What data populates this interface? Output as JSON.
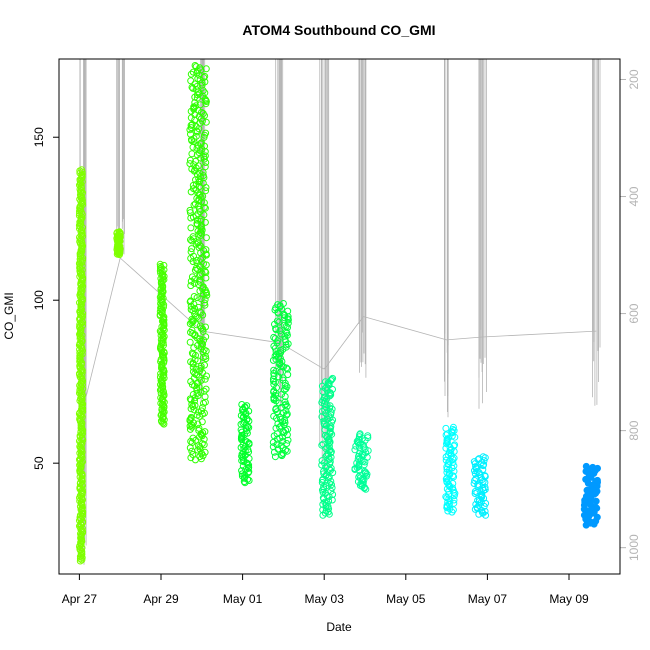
{
  "chart_data": {
    "type": "scatter",
    "title": "ATOM4 Southbound CO_GMI",
    "xlabel": "Date",
    "ylabel": "CO_GMI",
    "ylim": [
      16,
      174
    ],
    "y_ticks": [
      50,
      100,
      150
    ],
    "x_ticks": [
      {
        "date": "2018-04-27",
        "label": "Apr 27"
      },
      {
        "date": "2018-04-29",
        "label": "Apr 29"
      },
      {
        "date": "2018-05-01",
        "label": "May 01"
      },
      {
        "date": "2018-05-03",
        "label": "May 03"
      },
      {
        "date": "2018-05-05",
        "label": "May 05"
      },
      {
        "date": "2018-05-07",
        "label": "May 07"
      },
      {
        "date": "2018-05-09",
        "label": "May 09"
      }
    ],
    "xlim": [
      "2018-04-26T12:00",
      "2018-05-10T06:00"
    ],
    "secondary_axis": {
      "side": "right",
      "reversed": true,
      "color": "#b4b4b4",
      "ylim": [
        1045,
        165
      ],
      "ticks": [
        200,
        400,
        600,
        800,
        1000
      ]
    },
    "series": [
      {
        "time": "2018-04-27T00:00",
        "time_end": "2018-04-27T02:00",
        "y_min": 20,
        "y_max": 140,
        "color": "#7fff00",
        "hollow": true
      },
      {
        "time": "2018-04-27T22:00",
        "time_end": "2018-04-28T00:00",
        "y_min": 114,
        "y_max": 121,
        "color": "#7fff00",
        "hollow": true
      },
      {
        "time": "2018-04-28T23:30",
        "time_end": "2018-04-29T02:00",
        "y_min": 62,
        "y_max": 111,
        "color": "#47ff00",
        "hollow": true
      },
      {
        "time": "2018-04-29T17:00",
        "time_end": "2018-04-30T03:00",
        "y_min": 51,
        "y_max": 172,
        "color": "#2eff00",
        "hollow": true
      },
      {
        "time": "2018-04-30T23:00",
        "time_end": "2018-05-01T04:00",
        "y_min": 44,
        "y_max": 68,
        "color": "#00ff2a",
        "hollow": true
      },
      {
        "time": "2018-05-01T18:00",
        "time_end": "2018-05-02T03:00",
        "y_min": 52,
        "y_max": 99,
        "color": "#00ff3c",
        "hollow": true
      },
      {
        "time": "2018-05-02T22:30",
        "time_end": "2018-05-03T05:00",
        "y_min": 34,
        "y_max": 76,
        "color": "#00ff8a",
        "hollow": true
      },
      {
        "time": "2018-05-03T18:00",
        "time_end": "2018-05-04T02:00",
        "y_min": 42,
        "y_max": 59,
        "color": "#00ff99",
        "hollow": true
      },
      {
        "time": "2018-05-05T23:30",
        "time_end": "2018-05-06T05:00",
        "y_min": 35,
        "y_max": 61,
        "color": "#00ffff",
        "hollow": true
      },
      {
        "time": "2018-05-06T16:00",
        "time_end": "2018-05-06T23:00",
        "y_min": 34,
        "y_max": 52,
        "color": "#00f0ff",
        "hollow": true
      },
      {
        "time": "2018-05-09T09:00",
        "time_end": "2018-05-09T17:00",
        "y_min": 31,
        "y_max": 49,
        "color": "#0099ff",
        "hollow": false
      }
    ],
    "pressure_profiles": [
      {
        "time": "2018-04-27T02:00",
        "p_top": 165,
        "p_bottom": 1030
      },
      {
        "time": "2018-04-28T00:00",
        "p_top": 165,
        "p_bottom": 510
      },
      {
        "time": "2018-04-30T00:00",
        "p_top": 165,
        "p_bottom": 760
      },
      {
        "time": "2018-05-01T22:00",
        "p_top": 165,
        "p_bottom": 800
      },
      {
        "time": "2018-05-03T00:00",
        "p_top": 165,
        "p_bottom": 890
      },
      {
        "time": "2018-05-03T23:00",
        "p_top": 165,
        "p_bottom": 710
      },
      {
        "time": "2018-05-06T00:00",
        "p_top": 165,
        "p_bottom": 790
      },
      {
        "time": "2018-05-06T21:00",
        "p_top": 165,
        "p_bottom": 780
      },
      {
        "time": "2018-05-09T16:00",
        "p_top": 165,
        "p_bottom": 760
      }
    ]
  }
}
